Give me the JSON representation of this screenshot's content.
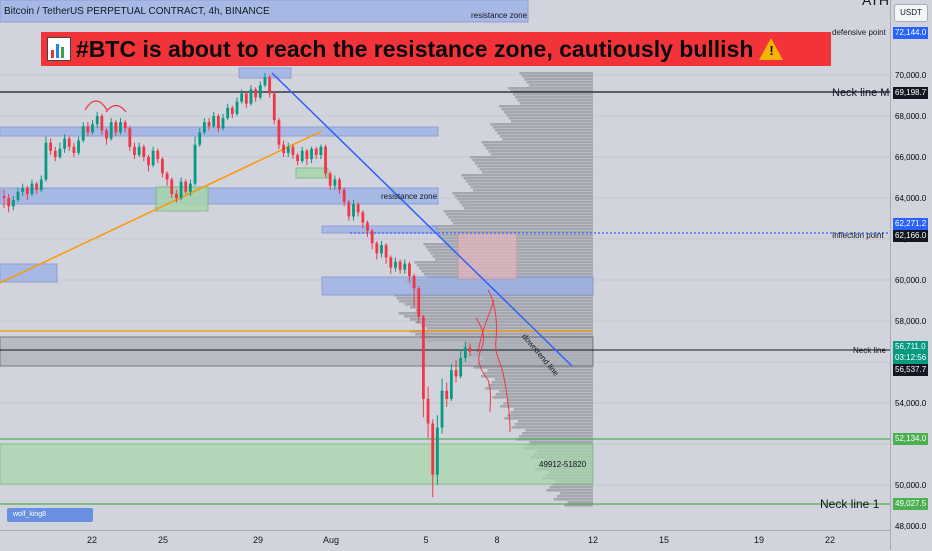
{
  "header": {
    "symbol": "Bitcoin / TetherUS PERPETUAL CONTRACT, 4h, BINANCE",
    "currency": "USDT",
    "ath": "ATH"
  },
  "banner": {
    "text": "#BTC is about to reach the resistance zone, cautiously bullish",
    "icon_left": "chart-emoji-icon",
    "icon_right": "warning-icon"
  },
  "author": {
    "label": "wolf_king8"
  },
  "price_axis": {
    "ticks": [
      "70,000.0",
      "68,000.0",
      "66,000.0",
      "64,000.0",
      "62,000.0",
      "60,000.0",
      "58,000.0",
      "54,000.0",
      "50,000.0",
      "48,000.0"
    ]
  },
  "time_axis": {
    "ticks": [
      "22",
      "25",
      "29",
      "Aug",
      "5",
      "8",
      "12",
      "15",
      "19",
      "22"
    ]
  },
  "levels": {
    "defensive": {
      "label": "defensive point",
      "value": "72,144.0",
      "color": "#2962ff"
    },
    "neck_m": {
      "label": "Neck line M",
      "value": "69,198.7",
      "color": "#131722"
    },
    "inflection_upper": {
      "value": "62,271.2",
      "color": "#2962ff"
    },
    "inflection": {
      "label": "Inflection point",
      "value": "62,166.0",
      "color": "#131722"
    },
    "neck": {
      "label": "Neck line",
      "value": "56,711.0",
      "countdown": "03:12:56",
      "color": "#089981"
    },
    "current": {
      "value": "56,537.7",
      "color": "#131722"
    },
    "support": {
      "value": "52,134.0",
      "color": "#4caf50"
    },
    "neck1": {
      "label": "Neck line 1",
      "value": "49,027.5",
      "color": "#4caf50"
    }
  },
  "annotations": {
    "resistance_top": "resistance zone",
    "resistance_mid": "resistance zone",
    "downtrend": "downtrend line",
    "range": "49912-51820"
  },
  "colors": {
    "up": "#089981",
    "down": "#f23645",
    "zone_blue": "#9db2e6",
    "zone_green": "#a7d6a9",
    "trend_blue": "#2962ff",
    "trend_orange": "#ff9800"
  },
  "chart_data": {
    "type": "candlestick",
    "timeframe": "4h",
    "ylim": [
      48000,
      72500
    ],
    "candles": [
      [
        64100,
        64000,
        64400,
        63500
      ],
      [
        64000,
        63600,
        64200,
        63300
      ],
      [
        63600,
        63900,
        64100,
        63400
      ],
      [
        63900,
        64300,
        64500,
        63800
      ],
      [
        64300,
        64500,
        64700,
        64100
      ],
      [
        64500,
        64200,
        64600,
        63900
      ],
      [
        64200,
        64700,
        64900,
        64100
      ],
      [
        64700,
        64400,
        64800,
        64200
      ],
      [
        64400,
        64900,
        65100,
        64300
      ],
      [
        64900,
        66700,
        67000,
        64800
      ],
      [
        66700,
        66300,
        66900,
        66100
      ],
      [
        66300,
        66000,
        66500,
        65800
      ],
      [
        66000,
        66400,
        66700,
        65900
      ],
      [
        66400,
        66900,
        67100,
        66200
      ],
      [
        66900,
        66500,
        67000,
        66300
      ],
      [
        66500,
        66200,
        66700,
        66000
      ],
      [
        66200,
        66800,
        67000,
        66100
      ],
      [
        66800,
        67500,
        67700,
        66700
      ],
      [
        67500,
        67200,
        67700,
        67000
      ],
      [
        67200,
        67600,
        67800,
        67100
      ],
      [
        67600,
        68000,
        68200,
        67400
      ],
      [
        68000,
        67300,
        68100,
        67100
      ],
      [
        67300,
        66900,
        67400,
        66600
      ],
      [
        66900,
        67700,
        67900,
        66800
      ],
      [
        67700,
        67200,
        67800,
        67000
      ],
      [
        67200,
        67700,
        67900,
        67100
      ],
      [
        67700,
        67400,
        67800,
        67200
      ],
      [
        67400,
        66500,
        67500,
        66300
      ],
      [
        66500,
        66100,
        66700,
        65900
      ],
      [
        66100,
        66500,
        66700,
        66000
      ],
      [
        66500,
        66000,
        66600,
        65800
      ],
      [
        66000,
        65600,
        66100,
        65300
      ],
      [
        65600,
        66300,
        66500,
        65500
      ],
      [
        66300,
        65900,
        66400,
        65700
      ],
      [
        65900,
        65200,
        66000,
        65000
      ],
      [
        65200,
        64900,
        65300,
        64600
      ],
      [
        64900,
        64200,
        65000,
        64000
      ],
      [
        64200,
        64000,
        64400,
        63800
      ],
      [
        64000,
        64800,
        65000,
        63900
      ],
      [
        64800,
        64300,
        64900,
        64200
      ],
      [
        64300,
        64700,
        64900,
        64100
      ],
      [
        64700,
        66600,
        67000,
        64600
      ],
      [
        66600,
        67200,
        67400,
        66500
      ],
      [
        67200,
        67700,
        67900,
        67100
      ],
      [
        67700,
        67500,
        67900,
        67300
      ],
      [
        67500,
        68000,
        68200,
        67400
      ],
      [
        68000,
        67400,
        68100,
        67200
      ],
      [
        67400,
        67900,
        68100,
        67300
      ],
      [
        67900,
        68400,
        68600,
        67800
      ],
      [
        68400,
        68100,
        68500,
        67900
      ],
      [
        68100,
        68700,
        68900,
        68000
      ],
      [
        68700,
        69100,
        69300,
        68600
      ],
      [
        69100,
        68600,
        69200,
        68400
      ],
      [
        68600,
        69300,
        69500,
        68500
      ],
      [
        69300,
        68900,
        69400,
        68700
      ],
      [
        68900,
        69500,
        69700,
        68800
      ],
      [
        69500,
        69900,
        70100,
        69400
      ],
      [
        69900,
        69100,
        70000,
        68900
      ],
      [
        69100,
        67800,
        69200,
        67600
      ],
      [
        67800,
        66600,
        67900,
        66400
      ],
      [
        66600,
        66200,
        66800,
        66000
      ],
      [
        66200,
        66500,
        66700,
        66000
      ],
      [
        66500,
        66100,
        66600,
        65900
      ],
      [
        66100,
        65800,
        66200,
        65600
      ],
      [
        65800,
        66300,
        66500,
        65700
      ],
      [
        66300,
        65900,
        66400,
        65600
      ],
      [
        65900,
        66400,
        66500,
        65700
      ],
      [
        66400,
        66100,
        66500,
        65900
      ],
      [
        66100,
        66500,
        66600,
        65900
      ],
      [
        66500,
        65200,
        66600,
        65000
      ],
      [
        65200,
        64600,
        65300,
        64400
      ],
      [
        64600,
        64900,
        65100,
        64400
      ],
      [
        64900,
        64400,
        65000,
        64200
      ],
      [
        64400,
        63800,
        64500,
        63600
      ],
      [
        63800,
        63100,
        63900,
        62900
      ],
      [
        63100,
        63700,
        63900,
        62900
      ],
      [
        63700,
        63300,
        63800,
        63100
      ],
      [
        63300,
        62800,
        63400,
        62500
      ],
      [
        62800,
        62400,
        62900,
        62100
      ],
      [
        62400,
        61800,
        62500,
        61500
      ],
      [
        61800,
        61300,
        61900,
        61000
      ],
      [
        61300,
        61700,
        61900,
        61100
      ],
      [
        61700,
        61100,
        61800,
        60800
      ],
      [
        61100,
        60600,
        61200,
        60300
      ],
      [
        60600,
        60900,
        61100,
        60400
      ],
      [
        60900,
        60500,
        61000,
        60300
      ],
      [
        60500,
        60800,
        61000,
        60300
      ],
      [
        60800,
        60200,
        60900,
        59900
      ],
      [
        60200,
        59600,
        60300,
        58700
      ],
      [
        59600,
        58200,
        59700,
        57900
      ],
      [
        58200,
        54200,
        58300,
        53300
      ],
      [
        54200,
        53000,
        54800,
        52300
      ],
      [
        53000,
        50500,
        53200,
        49400
      ],
      [
        50500,
        52800,
        53400,
        50000
      ],
      [
        52800,
        54600,
        55200,
        52500
      ],
      [
        54600,
        54200,
        55000,
        53800
      ],
      [
        54200,
        55600,
        55900,
        54100
      ],
      [
        55600,
        55300,
        56100,
        55000
      ],
      [
        55300,
        56200,
        56600,
        55200
      ],
      [
        56200,
        56700,
        57000,
        56000
      ],
      [
        56700,
        56500,
        56900,
        56300
      ]
    ]
  }
}
